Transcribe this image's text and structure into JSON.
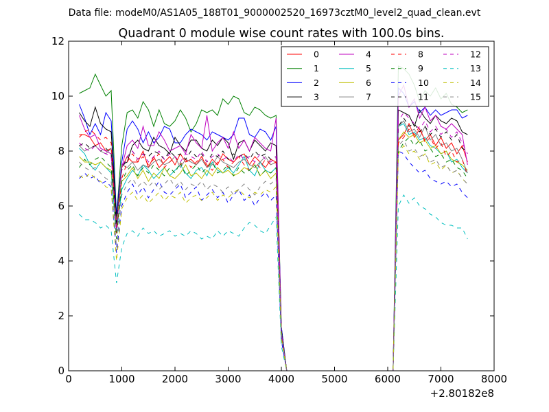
{
  "figure": {
    "suptitle": "Data file: modeM0/AS1A05_188T01_9000002520_16973cztM0_level2_quad_clean.evt"
  },
  "chart_data": {
    "type": "line",
    "title": "Quadrant 0 module wise count rates with 100.0s bins.",
    "xlabel": "",
    "ylabel": "",
    "x_offset_label": "+2.80182e8",
    "xlim": [
      0,
      8000
    ],
    "ylim": [
      0,
      12
    ],
    "xticks": [
      0,
      1000,
      2000,
      3000,
      4000,
      5000,
      6000,
      7000,
      8000
    ],
    "xtick_labels": [
      "0",
      "1000",
      "2000",
      "3000",
      "4000",
      "5000",
      "6000",
      "7000",
      "8000"
    ],
    "yticks": [
      0,
      2,
      4,
      6,
      8,
      10,
      12
    ],
    "ytick_labels": [
      "0",
      "2",
      "4",
      "6",
      "8",
      "10",
      "12"
    ],
    "grid": false,
    "legend": {
      "placement": "top-right",
      "columns": 4
    },
    "x": [
      200,
      300,
      400,
      500,
      600,
      700,
      800,
      900,
      1000,
      1100,
      1200,
      1300,
      1400,
      1500,
      1600,
      1700,
      1800,
      1900,
      2000,
      2100,
      2200,
      2300,
      2400,
      2500,
      2600,
      2700,
      2800,
      2900,
      3000,
      3100,
      3200,
      3300,
      3400,
      3500,
      3600,
      3700,
      3800,
      3900,
      4000,
      4100,
      6100,
      6200,
      6300,
      6400,
      6500,
      6600,
      6700,
      6800,
      6900,
      7000,
      7100,
      7200,
      7300,
      7400,
      7500
    ],
    "series": [
      {
        "name": "0",
        "color": "#ff0000",
        "dash": "solid",
        "values": [
          8.6,
          8.6,
          8.5,
          8.2,
          8.3,
          8.0,
          8.1,
          5.5,
          7.4,
          7.8,
          7.6,
          7.6,
          8.0,
          7.4,
          7.8,
          7.4,
          7.6,
          7.8,
          7.5,
          7.9,
          7.6,
          7.7,
          7.5,
          7.8,
          7.4,
          7.7,
          7.5,
          7.9,
          7.7,
          7.6,
          7.8,
          7.9,
          7.5,
          7.8,
          7.6,
          7.4,
          7.7,
          7.6,
          1.5,
          0.0,
          0.0,
          8.4,
          8.6,
          9.0,
          8.5,
          8.8,
          8.4,
          8.6,
          8.2,
          8.5,
          8.1,
          8.3,
          7.9,
          8.2,
          7.6
        ]
      },
      {
        "name": "1",
        "color": "#008000",
        "dash": "solid",
        "values": [
          10.1,
          10.2,
          10.3,
          10.8,
          10.4,
          10.0,
          10.2,
          5.6,
          8.2,
          9.4,
          9.5,
          9.2,
          9.8,
          9.5,
          8.9,
          9.5,
          9.0,
          8.9,
          9.1,
          9.5,
          9.2,
          8.7,
          9.0,
          9.5,
          9.4,
          9.5,
          9.3,
          9.9,
          9.7,
          10.0,
          9.9,
          9.4,
          9.3,
          9.6,
          9.5,
          9.3,
          9.2,
          9.3,
          1.6,
          0.0,
          0.0,
          11.1,
          11.0,
          10.8,
          10.4,
          9.8,
          10.2,
          10.0,
          10.3,
          9.9,
          10.1,
          9.7,
          9.6,
          9.4,
          9.5
        ]
      },
      {
        "name": "2",
        "color": "#0000ff",
        "dash": "solid",
        "values": [
          9.7,
          9.2,
          8.6,
          9.0,
          8.6,
          9.4,
          9.1,
          5.7,
          7.6,
          8.8,
          9.1,
          8.8,
          8.3,
          8.7,
          8.3,
          8.5,
          8.9,
          8.8,
          8.3,
          8.3,
          8.6,
          8.8,
          8.7,
          8.6,
          8.4,
          8.7,
          8.6,
          8.5,
          8.4,
          8.6,
          9.2,
          9.2,
          8.6,
          8.5,
          8.8,
          8.7,
          8.4,
          8.9,
          1.6,
          0.0,
          0.0,
          10.3,
          10.1,
          9.6,
          9.8,
          9.4,
          9.6,
          9.3,
          9.5,
          9.3,
          9.4,
          9.5,
          9.5,
          9.2,
          9.3
        ]
      },
      {
        "name": "3",
        "color": "#000000",
        "dash": "solid",
        "values": [
          9.4,
          9.1,
          8.9,
          9.6,
          9.0,
          8.8,
          8.7,
          5.5,
          7.5,
          7.6,
          8.2,
          8.4,
          8.1,
          8.0,
          8.5,
          8.2,
          8.1,
          7.9,
          8.5,
          8.2,
          8.0,
          8.4,
          8.4,
          8.1,
          8.0,
          8.4,
          8.2,
          8.5,
          8.3,
          7.7,
          8.3,
          8.4,
          8.0,
          8.4,
          8.2,
          8.0,
          8.3,
          8.2,
          1.5,
          0.0,
          0.0,
          9.5,
          9.4,
          9.3,
          8.9,
          9.5,
          9.2,
          9.0,
          9.3,
          9.1,
          9.0,
          9.2,
          9.1,
          8.7,
          8.6
        ]
      },
      {
        "name": "4",
        "color": "#bf00bf",
        "dash": "solid",
        "values": [
          9.3,
          8.8,
          8.5,
          8.6,
          8.1,
          8.0,
          7.9,
          5.2,
          7.4,
          8.2,
          8.4,
          8.1,
          8.9,
          8.2,
          8.2,
          8.7,
          8.4,
          8.0,
          8.1,
          8.2,
          7.9,
          8.6,
          8.3,
          8.1,
          9.3,
          8.0,
          8.3,
          8.5,
          8.1,
          8.7,
          8.1,
          8.4,
          8.0,
          8.5,
          8.3,
          8.1,
          8.0,
          9.2,
          1.4,
          0.0,
          0.0,
          10.0,
          10.4,
          9.6,
          9.9,
          9.2,
          9.6,
          9.1,
          9.3,
          8.9,
          8.8,
          9.0,
          8.8,
          8.6,
          7.5
        ]
      },
      {
        "name": "5",
        "color": "#00bfbf",
        "dash": "solid",
        "values": [
          8.1,
          7.9,
          7.5,
          7.3,
          7.6,
          7.4,
          7.2,
          5.0,
          6.6,
          7.0,
          7.3,
          7.1,
          7.5,
          7.3,
          7.0,
          7.2,
          7.4,
          7.1,
          7.3,
          7.5,
          7.2,
          7.0,
          7.3,
          7.4,
          7.1,
          7.6,
          7.3,
          7.2,
          7.4,
          7.2,
          7.5,
          7.8,
          7.3,
          7.1,
          7.6,
          7.3,
          7.2,
          7.4,
          1.3,
          0.0,
          0.0,
          8.9,
          9.0,
          8.6,
          8.7,
          8.4,
          8.5,
          8.2,
          8.1,
          7.9,
          8.0,
          7.6,
          7.7,
          7.4,
          7.2
        ]
      },
      {
        "name": "6",
        "color": "#bfbf00",
        "dash": "solid",
        "values": [
          7.8,
          7.6,
          7.6,
          7.5,
          7.6,
          7.4,
          7.3,
          5.4,
          6.9,
          7.1,
          7.4,
          7.0,
          7.3,
          6.9,
          7.2,
          7.0,
          7.4,
          7.1,
          7.0,
          7.2,
          7.5,
          7.1,
          7.2,
          7.0,
          7.3,
          7.1,
          7.4,
          7.2,
          7.3,
          7.1,
          7.2,
          7.4,
          7.3,
          7.5,
          7.1,
          7.3,
          7.0,
          7.2,
          1.3,
          0.0,
          0.0,
          8.4,
          8.7,
          8.5,
          8.6,
          8.3,
          8.4,
          8.1,
          8.2,
          7.9,
          8.0,
          7.7,
          7.6,
          7.5,
          7.3
        ]
      },
      {
        "name": "7",
        "color": "#808080",
        "dash": "solid",
        "values": [
          8.2,
          8.0,
          8.1,
          8.2,
          8.0,
          7.9,
          8.1,
          5.3,
          7.5,
          7.4,
          7.6,
          7.3,
          7.5,
          7.4,
          7.6,
          7.7,
          7.5,
          7.6,
          7.8,
          7.4,
          7.7,
          7.6,
          7.5,
          7.7,
          7.4,
          7.5,
          7.8,
          7.6,
          7.5,
          7.4,
          7.6,
          7.7,
          7.5,
          7.4,
          7.6,
          7.8,
          7.5,
          7.6,
          1.4,
          0.0,
          0.0,
          8.9,
          9.1,
          8.7,
          8.8,
          8.5,
          8.9,
          8.4,
          8.6,
          8.2,
          8.3,
          8.0,
          8.1,
          7.7,
          7.2
        ]
      },
      {
        "name": "8",
        "color": "#ff0000",
        "dash": "dash",
        "values": [
          8.5,
          8.7,
          8.8,
          8.6,
          8.4,
          8.5,
          8.3,
          5.0,
          7.0,
          7.6,
          7.9,
          7.6,
          7.8,
          7.5,
          7.7,
          7.9,
          7.4,
          7.6,
          7.8,
          7.5,
          7.7,
          7.4,
          7.6,
          7.8,
          7.5,
          7.3,
          7.6,
          7.7,
          7.4,
          7.6,
          7.8,
          7.5,
          7.3,
          7.6,
          7.4,
          7.7,
          7.5,
          7.6,
          1.3,
          0.0,
          0.0,
          8.3,
          8.5,
          8.8,
          8.6,
          8.9,
          8.3,
          8.5,
          8.1,
          8.3,
          7.8,
          8.0,
          7.6,
          7.7,
          7.1
        ]
      },
      {
        "name": "9",
        "color": "#008000",
        "dash": "dash",
        "values": [
          7.4,
          7.7,
          7.5,
          7.7,
          7.8,
          7.6,
          7.4,
          4.8,
          6.9,
          7.3,
          7.5,
          7.1,
          7.4,
          7.2,
          7.5,
          7.3,
          7.1,
          7.4,
          7.2,
          7.6,
          7.1,
          7.3,
          7.5,
          7.2,
          7.4,
          7.6,
          7.2,
          7.3,
          7.5,
          7.1,
          7.4,
          7.2,
          7.3,
          7.5,
          7.1,
          7.3,
          7.2,
          7.4,
          1.2,
          0.0,
          0.0,
          8.0,
          8.3,
          8.5,
          8.2,
          8.4,
          8.0,
          8.1,
          7.8,
          7.9,
          7.6,
          7.7,
          7.4,
          7.3,
          7.0
        ]
      },
      {
        "name": "10",
        "color": "#0000ff",
        "dash": "dash",
        "values": [
          7.0,
          7.2,
          7.0,
          7.1,
          6.8,
          6.9,
          6.7,
          4.3,
          6.0,
          6.5,
          6.8,
          6.4,
          6.7,
          6.3,
          6.6,
          6.9,
          6.5,
          6.4,
          6.6,
          6.8,
          6.3,
          6.5,
          6.7,
          6.2,
          6.4,
          6.6,
          6.3,
          6.5,
          6.1,
          6.4,
          6.6,
          6.2,
          6.4,
          6.0,
          6.3,
          6.5,
          6.2,
          6.4,
          1.1,
          0.0,
          0.0,
          8.0,
          7.9,
          7.6,
          7.4,
          7.2,
          7.3,
          7.0,
          6.9,
          6.8,
          6.9,
          6.7,
          6.8,
          6.5,
          6.3
        ]
      },
      {
        "name": "11",
        "color": "#000000",
        "dash": "dash",
        "values": [
          8.2,
          8.3,
          8.1,
          8.2,
          8.0,
          8.1,
          7.9,
          5.3,
          7.3,
          7.8,
          8.0,
          7.7,
          7.9,
          7.8,
          8.0,
          7.9,
          7.7,
          8.0,
          7.8,
          7.9,
          7.7,
          8.0,
          7.8,
          7.9,
          7.6,
          7.9,
          7.8,
          8.0,
          7.7,
          7.9,
          7.8,
          7.9,
          7.7,
          8.0,
          7.8,
          7.9,
          7.7,
          7.8,
          1.4,
          0.0,
          0.0,
          8.9,
          9.2,
          8.9,
          9.0,
          8.7,
          8.9,
          8.6,
          8.8,
          8.5,
          8.7,
          8.4,
          8.6,
          8.1,
          8.0
        ]
      },
      {
        "name": "12",
        "color": "#bf00bf",
        "dash": "dash",
        "values": [
          8.3,
          8.1,
          8.0,
          8.2,
          8.0,
          7.9,
          7.8,
          5.1,
          7.4,
          7.8,
          8.0,
          7.7,
          7.9,
          7.6,
          7.8,
          8.0,
          7.7,
          7.9,
          7.8,
          7.6,
          7.9,
          7.8,
          7.7,
          8.0,
          7.6,
          7.8,
          7.9,
          7.7,
          7.8,
          7.6,
          7.9,
          7.7,
          7.8,
          7.6,
          7.9,
          7.7,
          7.6,
          7.8,
          1.4,
          0.0,
          0.0,
          9.1,
          9.4,
          9.2,
          9.0,
          8.8,
          9.1,
          8.7,
          8.9,
          8.6,
          8.8,
          8.5,
          8.7,
          8.3,
          7.9
        ]
      },
      {
        "name": "13",
        "color": "#00bfbf",
        "dash": "dash",
        "values": [
          5.7,
          5.5,
          5.5,
          5.4,
          5.2,
          5.3,
          5.1,
          3.2,
          4.5,
          5.0,
          5.1,
          4.9,
          5.2,
          5.0,
          5.1,
          4.9,
          5.0,
          5.1,
          4.9,
          5.0,
          4.9,
          5.1,
          5.0,
          4.8,
          4.9,
          4.8,
          5.1,
          4.9,
          5.1,
          5.0,
          4.9,
          5.2,
          5.4,
          5.3,
          5.1,
          5.0,
          5.3,
          5.6,
          0.9,
          0.0,
          0.0,
          6.0,
          6.4,
          6.1,
          6.3,
          6.0,
          5.9,
          5.7,
          5.6,
          5.4,
          5.3,
          5.3,
          5.2,
          5.2,
          4.8
        ]
      },
      {
        "name": "14",
        "color": "#bfbf00",
        "dash": "dash",
        "values": [
          7.1,
          7.0,
          7.2,
          7.0,
          6.9,
          6.7,
          6.6,
          4.0,
          5.9,
          6.3,
          6.5,
          6.2,
          6.4,
          6.1,
          6.3,
          6.5,
          6.2,
          6.4,
          6.3,
          6.5,
          6.1,
          6.3,
          6.4,
          6.2,
          6.3,
          6.5,
          6.2,
          6.4,
          6.3,
          6.5,
          6.6,
          6.4,
          6.3,
          6.5,
          6.4,
          6.6,
          6.5,
          6.7,
          1.2,
          0.0,
          0.0,
          7.9,
          8.2,
          7.9,
          8.0,
          7.7,
          7.9,
          7.5,
          7.6,
          7.3,
          7.5,
          7.2,
          7.3,
          7.0,
          6.8
        ]
      },
      {
        "name": "15",
        "color": "#808080",
        "dash": "dash",
        "values": [
          7.6,
          7.4,
          7.3,
          7.4,
          7.2,
          7.0,
          6.9,
          4.5,
          6.4,
          6.8,
          7.0,
          6.7,
          6.9,
          6.7,
          6.9,
          6.6,
          6.8,
          7.0,
          6.7,
          6.9,
          6.6,
          6.8,
          6.7,
          6.9,
          6.6,
          6.8,
          6.7,
          6.5,
          6.7,
          6.4,
          6.6,
          6.8,
          6.6,
          6.4,
          6.7,
          6.9,
          6.8,
          7.0,
          1.3,
          0.0,
          0.0,
          8.2,
          8.4,
          8.0,
          8.1,
          7.8,
          7.9,
          7.6,
          7.7,
          7.4,
          7.5,
          7.2,
          7.3,
          7.0,
          6.8
        ]
      }
    ]
  }
}
